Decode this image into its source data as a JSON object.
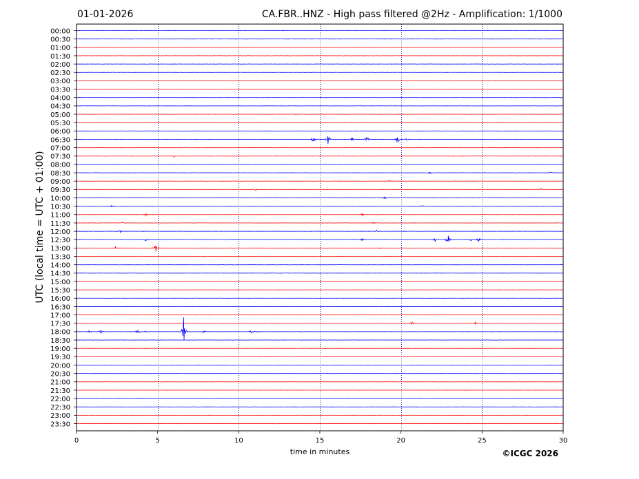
{
  "header": {
    "date": "01-01-2026",
    "title": "CA.FBR..HNZ - High pass filtered @2Hz - Amplification: 1/1000"
  },
  "footer": {
    "copyright": "©ICGC 2026"
  },
  "chart_data": {
    "type": "line",
    "title": "CA.FBR..HNZ - High pass filtered @2Hz - Amplification: 1/1000",
    "date": "01-01-2026",
    "xlabel": "time in minutes",
    "ylabel": "UTC (local time = UTC + 01:00)",
    "xlim": [
      0,
      30
    ],
    "x_ticks": [
      0,
      5,
      10,
      15,
      20,
      25,
      30
    ],
    "vertical_grid_minutes": [
      5,
      10,
      15,
      20,
      25
    ],
    "grid": "vertical dotted lines",
    "colors": {
      "odd_hour_traces": "#0000ff",
      "even_hour_traces": "#ff0000",
      "grid": "#000080"
    },
    "trace_labels": [
      "00:00",
      "00:30",
      "01:00",
      "01:30",
      "02:00",
      "02:30",
      "03:00",
      "03:30",
      "04:00",
      "04:30",
      "05:00",
      "05:30",
      "06:00",
      "06:30",
      "07:00",
      "07:30",
      "08:00",
      "08:30",
      "09:00",
      "09:30",
      "10:00",
      "10:30",
      "11:00",
      "11:30",
      "12:00",
      "12:30",
      "13:00",
      "13:30",
      "14:00",
      "14:30",
      "15:00",
      "15:30",
      "16:00",
      "16:30",
      "17:00",
      "17:30",
      "18:00",
      "18:30",
      "19:00",
      "19:30",
      "20:00",
      "20:30",
      "21:00",
      "21:30",
      "22:00",
      "22:30",
      "23:00",
      "23:30"
    ],
    "bursts": [
      {
        "trace": "06:30",
        "minute": 14.6,
        "amplitude": 5
      },
      {
        "trace": "06:30",
        "minute": 15.5,
        "amplitude": 7
      },
      {
        "trace": "06:30",
        "minute": 17.0,
        "amplitude": 3
      },
      {
        "trace": "06:30",
        "minute": 17.9,
        "amplitude": 7
      },
      {
        "trace": "06:30",
        "minute": 19.8,
        "amplitude": 7
      },
      {
        "trace": "06:30",
        "minute": 20.4,
        "amplitude": 3
      },
      {
        "trace": "07:30",
        "minute": 6.0,
        "amplitude": 2
      },
      {
        "trace": "08:30",
        "minute": 21.8,
        "amplitude": 2
      },
      {
        "trace": "08:30",
        "minute": 29.2,
        "amplitude": 2
      },
      {
        "trace": "09:00",
        "minute": 19.3,
        "amplitude": 2
      },
      {
        "trace": "09:30",
        "minute": 11.0,
        "amplitude": 2
      },
      {
        "trace": "09:30",
        "minute": 28.6,
        "amplitude": 2
      },
      {
        "trace": "10:00",
        "minute": 19.0,
        "amplitude": 2
      },
      {
        "trace": "10:30",
        "minute": 2.2,
        "amplitude": 2
      },
      {
        "trace": "10:30",
        "minute": 21.3,
        "amplitude": 2
      },
      {
        "trace": "11:00",
        "minute": 4.3,
        "amplitude": 2
      },
      {
        "trace": "11:00",
        "minute": 17.6,
        "amplitude": 2
      },
      {
        "trace": "11:30",
        "minute": 2.8,
        "amplitude": 2
      },
      {
        "trace": "11:30",
        "minute": 18.3,
        "amplitude": 2
      },
      {
        "trace": "12:00",
        "minute": 2.7,
        "amplitude": 2
      },
      {
        "trace": "12:00",
        "minute": 18.5,
        "amplitude": 2
      },
      {
        "trace": "12:30",
        "minute": 4.3,
        "amplitude": 3
      },
      {
        "trace": "12:30",
        "minute": 17.6,
        "amplitude": 2
      },
      {
        "trace": "12:30",
        "minute": 22.1,
        "amplitude": 3
      },
      {
        "trace": "12:30",
        "minute": 22.9,
        "amplitude": 8
      },
      {
        "trace": "12:30",
        "minute": 24.3,
        "amplitude": 3
      },
      {
        "trace": "12:30",
        "minute": 24.8,
        "amplitude": 4
      },
      {
        "trace": "13:00",
        "minute": 2.4,
        "amplitude": 2
      },
      {
        "trace": "13:00",
        "minute": 4.9,
        "amplitude": 6
      },
      {
        "trace": "13:00",
        "minute": 18.7,
        "amplitude": 2
      },
      {
        "trace": "17:30",
        "minute": 20.7,
        "amplitude": 3
      },
      {
        "trace": "17:30",
        "minute": 24.6,
        "amplitude": 2
      },
      {
        "trace": "18:00",
        "minute": 0.8,
        "amplitude": 3
      },
      {
        "trace": "18:00",
        "minute": 1.5,
        "amplitude": 3
      },
      {
        "trace": "18:00",
        "minute": 3.8,
        "amplitude": 5
      },
      {
        "trace": "18:00",
        "minute": 4.3,
        "amplitude": 2
      },
      {
        "trace": "18:00",
        "minute": 6.6,
        "amplitude": 24
      },
      {
        "trace": "18:00",
        "minute": 7.9,
        "amplitude": 4
      },
      {
        "trace": "18:00",
        "minute": 10.8,
        "amplitude": 3
      },
      {
        "trace": "18:00",
        "minute": 11.2,
        "amplitude": 2
      }
    ]
  }
}
